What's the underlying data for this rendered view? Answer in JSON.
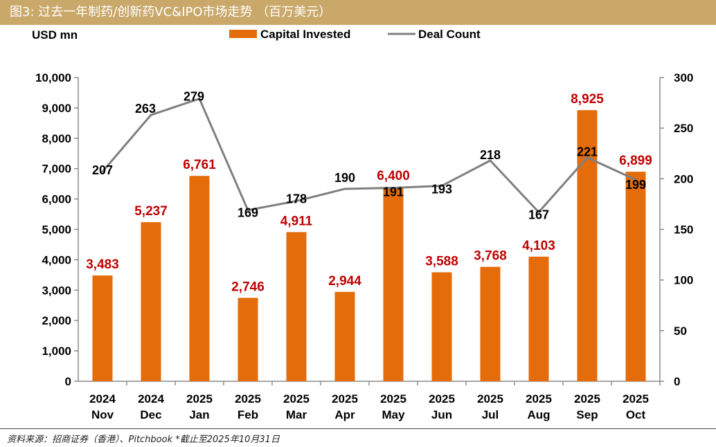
{
  "header": {
    "title": "图3:  过去一年制药/创新药VC&IPO市场走势 （百万美元）"
  },
  "footer": {
    "source": "资料来源：招商证券（香港）、Pitchbook  *截止至2025年10月31日"
  },
  "colors": {
    "bar": "#e46c0a",
    "line": "#7f7f7f",
    "bar_label": "#c00000",
    "line_label": "#000000",
    "title_bg": "#c9a86a"
  },
  "chart_data": {
    "type": "bar",
    "title": "",
    "y_unit_label": "USD mn",
    "categories": [
      [
        "2024",
        "Nov"
      ],
      [
        "2024",
        "Dec"
      ],
      [
        "2025",
        "Jan"
      ],
      [
        "2025",
        "Feb"
      ],
      [
        "2025",
        "Mar"
      ],
      [
        "2025",
        "Apr"
      ],
      [
        "2025",
        "May"
      ],
      [
        "2025",
        "Jun"
      ],
      [
        "2025",
        "Jul"
      ],
      [
        "2025",
        "Aug"
      ],
      [
        "2025",
        "Sep"
      ],
      [
        "2025",
        "Oct"
      ]
    ],
    "series": [
      {
        "name": "Capital Invested",
        "type": "bar",
        "axis": "left",
        "values": [
          3483,
          5237,
          6761,
          2746,
          4911,
          2944,
          6400,
          3588,
          3768,
          4103,
          8925,
          6899
        ],
        "labels": [
          "3,483",
          "5,237",
          "6,761",
          "2,746",
          "4,911",
          "2,944",
          "6,400",
          "3,588",
          "3,768",
          "4,103",
          "8,925",
          "6,899"
        ]
      },
      {
        "name": "Deal Count",
        "type": "line",
        "axis": "right",
        "values": [
          207,
          263,
          279,
          169,
          178,
          190,
          191,
          193,
          218,
          167,
          221,
          199
        ],
        "labels": [
          "207",
          "263",
          "279",
          "169",
          "178",
          "190",
          "191",
          "193",
          "218",
          "167",
          "221",
          "199"
        ]
      }
    ],
    "y_left": {
      "range": [
        0,
        10000
      ],
      "ticks": [
        "0",
        "1,000",
        "2,000",
        "3,000",
        "4,000",
        "5,000",
        "6,000",
        "7,000",
        "8,000",
        "9,000",
        "10,000"
      ]
    },
    "y_right": {
      "range": [
        0,
        300
      ],
      "ticks": [
        "0",
        "50",
        "100",
        "150",
        "200",
        "250",
        "300"
      ]
    },
    "legend": {
      "position": "top",
      "items": [
        "Capital Invested",
        "Deal Count"
      ]
    },
    "grid": false
  }
}
